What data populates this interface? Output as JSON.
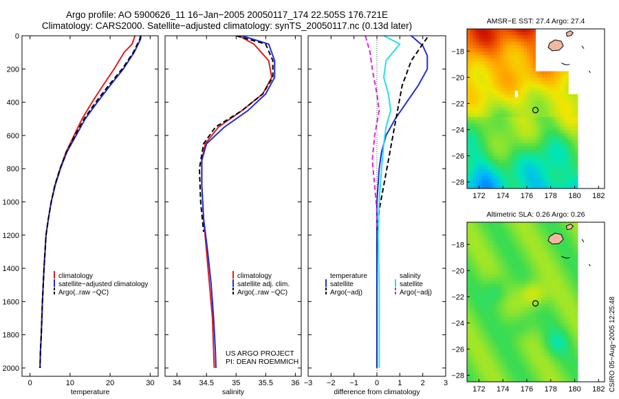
{
  "title": {
    "line1": "Argo profile: AO 5900626_11 16−Jan−2005 20050117_174 22.505S 176.721E",
    "line2": "Climatology: CARS2000. Satellite−adjusted climatology: synTS_20050117.nc (0.13d later)"
  },
  "credits": {
    "project": "US ARGO PROJECT",
    "pi": "PI: DEAN ROEMMICH",
    "stamp": "CSIRO 05−Aug−2005 12:25:48"
  },
  "colors": {
    "climatology": "#e41a1c",
    "satellite": "#1f2bd6",
    "argo": "#000000",
    "salinity_satellite": "#22e0e0",
    "salinity_argo": "#e020e0"
  },
  "chart_data": [
    {
      "type": "line",
      "name": "temperature",
      "xlabel": "temperature",
      "xlim": [
        -2,
        32
      ],
      "ylim": [
        0,
        2050
      ],
      "y_reversed": true,
      "xticks": [
        0,
        10,
        20,
        30
      ],
      "yticks": [
        0,
        200,
        400,
        600,
        800,
        1000,
        1200,
        1400,
        1600,
        1800,
        2000
      ],
      "legend": [
        "climatology",
        "satellite−adjusted climatology",
        "Argo(..raw −QC)"
      ],
      "series": [
        {
          "name": "climatology",
          "style": "solid",
          "color": "climatology",
          "x": [
            26.2,
            25.5,
            23.5,
            21.0,
            18.2,
            15.5,
            13.0,
            11.0,
            9.0,
            7.5,
            6.2,
            5.3,
            4.6,
            4.0,
            3.5,
            3.1,
            2.8,
            2.6,
            2.5
          ],
          "y": [
            0,
            50,
            100,
            200,
            300,
            400,
            500,
            600,
            700,
            800,
            900,
            1000,
            1100,
            1200,
            1400,
            1600,
            1800,
            1900,
            2000
          ]
        },
        {
          "name": "satellite−adjusted climatology",
          "style": "solid",
          "color": "satellite",
          "x": [
            27.7,
            27.6,
            26.0,
            23.3,
            20.0,
            16.8,
            13.8,
            11.5,
            9.2,
            7.6,
            6.3,
            5.3,
            4.6,
            4.0,
            3.5,
            3.1,
            2.8,
            2.6,
            2.5
          ],
          "y": [
            0,
            20,
            100,
            200,
            300,
            400,
            500,
            600,
            700,
            800,
            900,
            1000,
            1100,
            1200,
            1400,
            1600,
            1800,
            1900,
            2000
          ]
        },
        {
          "name": "Argo(..raw −QC)",
          "style": "dashed",
          "color": "argo",
          "x": [
            27.6,
            27.4,
            25.8,
            23.0,
            19.6,
            16.4,
            13.5,
            11.2,
            9.1,
            7.5,
            6.2,
            5.3,
            4.6,
            4.0,
            3.5,
            3.1,
            2.8,
            2.6,
            2.5
          ],
          "y": [
            0,
            20,
            100,
            200,
            300,
            400,
            500,
            600,
            700,
            800,
            900,
            1000,
            1100,
            1200,
            1400,
            1600,
            1800,
            1900,
            2000
          ]
        }
      ]
    },
    {
      "type": "line",
      "name": "salinity",
      "xlabel": "salinity",
      "xlim": [
        33.8,
        36.1
      ],
      "ylim": [
        0,
        2050
      ],
      "y_reversed": true,
      "xticks": [
        34,
        34.5,
        35,
        35.5,
        36
      ],
      "xticklabels": [
        "34",
        "34.5",
        "35",
        "35.5",
        "36"
      ],
      "legend": [
        "climatology",
        "satellite adj. clim.",
        "Argo(..raw −QC)"
      ],
      "series": [
        {
          "name": "climatology",
          "style": "solid",
          "color": "climatology",
          "x": [
            35.05,
            35.3,
            35.55,
            35.6,
            35.45,
            35.1,
            34.7,
            34.48,
            34.42,
            34.42,
            34.45,
            34.5,
            34.55,
            34.6,
            34.62,
            34.63
          ],
          "y": [
            0,
            50,
            150,
            250,
            350,
            450,
            550,
            650,
            750,
            900,
            1100,
            1300,
            1500,
            1700,
            1900,
            2000
          ]
        },
        {
          "name": "satellite adj. clim.",
          "style": "solid",
          "color": "satellite",
          "x": [
            35.1,
            35.55,
            35.65,
            35.65,
            35.5,
            35.2,
            34.8,
            34.5,
            34.42,
            34.42,
            34.45,
            34.52,
            34.58,
            34.62,
            34.65,
            34.66
          ],
          "y": [
            0,
            50,
            150,
            250,
            350,
            450,
            550,
            650,
            750,
            900,
            1100,
            1300,
            1500,
            1700,
            1900,
            2000
          ]
        },
        {
          "name": "Argo(..raw −QC)",
          "style": "dashed",
          "color": "argo",
          "x": [
            35.0,
            35.5,
            35.62,
            35.62,
            35.45,
            35.1,
            34.65,
            34.45,
            34.38,
            34.4,
            34.45
          ],
          "y": [
            0,
            50,
            150,
            250,
            350,
            450,
            550,
            650,
            800,
            1000,
            1180
          ]
        }
      ]
    },
    {
      "type": "line",
      "name": "difference",
      "xlabel": "difference from climatology",
      "xlim": [
        -3,
        3
      ],
      "ylim": [
        0,
        2050
      ],
      "y_reversed": true,
      "xticks": [
        -3,
        -2,
        -1,
        0,
        1,
        2,
        3
      ],
      "xticklabels": [
        "−3",
        "−2",
        "−1",
        "0",
        "1",
        "2",
        "3"
      ],
      "legend_left": [
        "temperature",
        "satellite",
        "Argo(−adj)"
      ],
      "legend_right": [
        "salinity",
        "satellite",
        "Argo(−adj)"
      ],
      "series": [
        {
          "name": "temperature satellite",
          "style": "solid",
          "color": "satellite",
          "x": [
            1.5,
            2.0,
            2.2,
            2.2,
            1.8,
            1.3,
            0.8,
            0.4,
            0.2,
            0.1,
            0.05,
            0.0,
            0.0,
            0.0,
            0.0
          ],
          "y": [
            0,
            60,
            120,
            200,
            300,
            400,
            500,
            600,
            700,
            800,
            900,
            1000,
            1200,
            1600,
            2000
          ]
        },
        {
          "name": "temperature Argo(−adj)",
          "style": "dashed",
          "color": "argo",
          "x": [
            2.2,
            1.5,
            1.1,
            0.9,
            0.7,
            0.5,
            0.3,
            0.1,
            0.05,
            0.0
          ],
          "y": [
            10,
            150,
            300,
            450,
            600,
            750,
            900,
            1050,
            1150,
            1180
          ]
        },
        {
          "name": "salinity satellite",
          "style": "solid",
          "color": "salinity_satellite",
          "x": [
            0.3,
            1.0,
            0.4,
            0.3,
            0.5,
            0.6,
            0.4,
            0.3,
            0.2,
            0.1,
            0.05,
            0.1,
            0.1,
            0.1
          ],
          "y": [
            0,
            50,
            150,
            250,
            350,
            450,
            550,
            650,
            800,
            1000,
            1200,
            1500,
            1800,
            2000
          ]
        },
        {
          "name": "salinity Argo(−adj)",
          "style": "dashed",
          "color": "salinity_argo",
          "x": [
            -0.5,
            -0.3,
            -0.2,
            0.0,
            0.1,
            -0.1,
            -0.2,
            -0.1,
            0.0,
            0.0
          ],
          "y": [
            0,
            100,
            200,
            350,
            450,
            600,
            750,
            900,
            1050,
            1150
          ]
        }
      ],
      "zero_line": 0
    },
    {
      "type": "heatmap",
      "name": "sst-map",
      "title": "AMSR−E SST: 27.4 Argo: 27.4",
      "xlim": [
        171,
        182.5
      ],
      "ylim": [
        -28.5,
        -16.3
      ],
      "xticks": [
        172,
        174,
        176,
        178,
        180,
        182
      ],
      "yticks": [
        -18,
        -20,
        -22,
        -24,
        -26,
        -28
      ],
      "yticklabels": [
        "−18",
        "−20",
        "−22",
        "−24",
        "−26",
        "−28"
      ],
      "data_xlim": [
        171,
        180.2
      ],
      "profile_marker": {
        "lon": 176.721,
        "lat": -22.505
      }
    },
    {
      "type": "heatmap",
      "name": "sla-map",
      "title": "Altimetric SLA: 0.26 Argo: 0.26",
      "xlim": [
        171,
        182.5
      ],
      "ylim": [
        -28.5,
        -16.3
      ],
      "xticks": [
        172,
        174,
        176,
        178,
        180,
        182
      ],
      "yticks": [
        -18,
        -20,
        -22,
        -24,
        -26,
        -28
      ],
      "yticklabels": [
        "−18",
        "−20",
        "−22",
        "−24",
        "−26",
        "−28"
      ],
      "data_xlim": [
        171,
        180.2
      ],
      "profile_marker": {
        "lon": 176.721,
        "lat": -22.505
      }
    }
  ]
}
